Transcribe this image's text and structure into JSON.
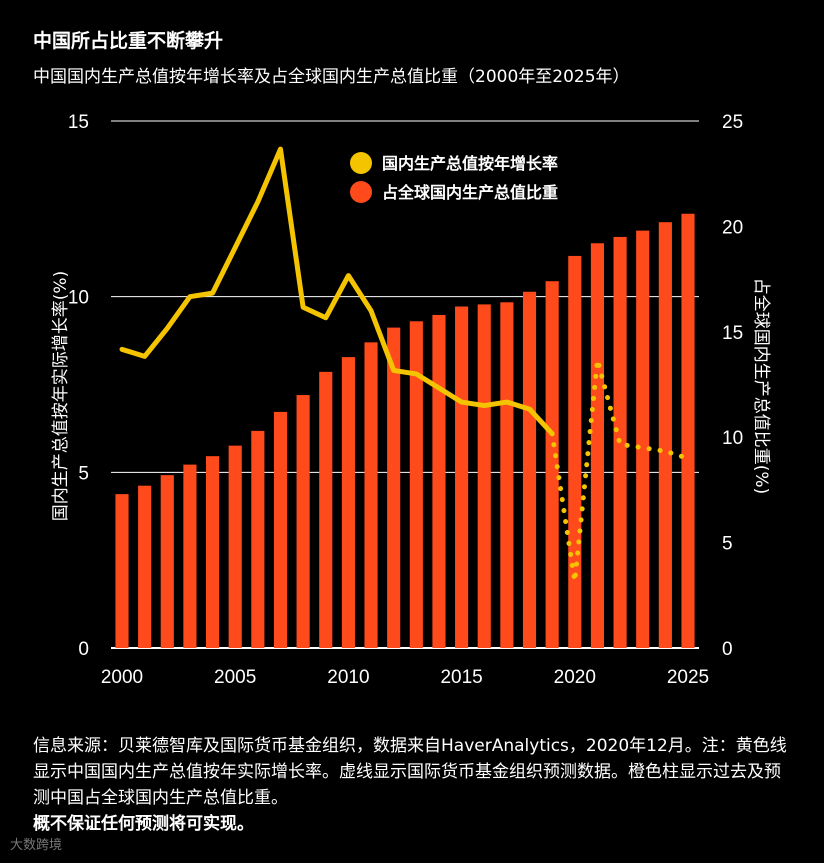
{
  "title": "中国所占比重不断攀升",
  "subtitle": "中国国内生产总值按年增长率及占全球国内生产总值比重（2000年至2025年）",
  "footer_text": "信息来源：贝莱德智库及国际货币基金组织，数据来自HaverAnalytics，2020年12月。注：黄色线显示中国国内生产总值按年实际增长率。虚线显示国际货币基金组织预测数据。橙色柱显示过去及预测中国占全球国内生产总值比重。",
  "footer_bold": "概不保证任何预测将可实现。",
  "watermark": "大数跨境",
  "chart_data": {
    "type": "bar+line",
    "x_ticks": [
      "2000",
      "2005",
      "2010",
      "2015",
      "2020",
      "2025"
    ],
    "left_axis": {
      "label": "国内生产总值按年实际增长率(%)",
      "ticks": [
        "0",
        "5",
        "10",
        "15"
      ],
      "ylim": [
        0,
        15
      ]
    },
    "right_axis": {
      "label": "占全球国内生产总值比重(%)",
      "ticks": [
        "0",
        "5",
        "10",
        "15",
        "20",
        "25"
      ],
      "ylim": [
        0,
        25
      ]
    },
    "legend": [
      {
        "name": "国内生产总值按年增长率",
        "color": "#f5c400"
      },
      {
        "name": "占全球国内生产总值比重",
        "color": "#ff4a1c"
      }
    ],
    "bars": {
      "name": "占全球国内生产总值比重",
      "years": [
        2000,
        2001,
        2002,
        2003,
        2004,
        2005,
        2006,
        2007,
        2008,
        2009,
        2010,
        2011,
        2012,
        2013,
        2014,
        2015,
        2016,
        2017,
        2018,
        2019,
        2020,
        2021,
        2022,
        2023,
        2024,
        2025
      ],
      "values": [
        7.3,
        7.7,
        8.2,
        8.7,
        9.1,
        9.6,
        10.3,
        11.2,
        12.0,
        13.1,
        13.8,
        14.5,
        15.2,
        15.5,
        15.8,
        16.2,
        16.3,
        16.4,
        16.9,
        17.4,
        18.6,
        19.2,
        19.5,
        19.8,
        20.2,
        20.6
      ]
    },
    "line_actual": {
      "name": "国内生产总值按年增长率",
      "years": [
        2000,
        2001,
        2002,
        2003,
        2004,
        2005,
        2006,
        2007,
        2008,
        2009,
        2010,
        2011,
        2012,
        2013,
        2014,
        2015,
        2016,
        2017,
        2018,
        2019
      ],
      "values": [
        8.5,
        8.3,
        9.1,
        10.0,
        10.1,
        11.4,
        12.7,
        14.2,
        9.7,
        9.4,
        10.6,
        9.6,
        7.9,
        7.8,
        7.4,
        7.0,
        6.9,
        7.0,
        6.8,
        6.1
      ]
    },
    "line_forecast": {
      "name": "国际货币基金组织预测数据",
      "years": [
        2019,
        2020,
        2021,
        2022,
        2023,
        2024,
        2025
      ],
      "values": [
        6.1,
        1.9,
        8.2,
        5.8,
        5.7,
        5.6,
        5.4
      ]
    },
    "colors": {
      "background": "#000000",
      "bar": "#ff4a1c",
      "line": "#f5c400",
      "grid": "#ffffff"
    }
  }
}
